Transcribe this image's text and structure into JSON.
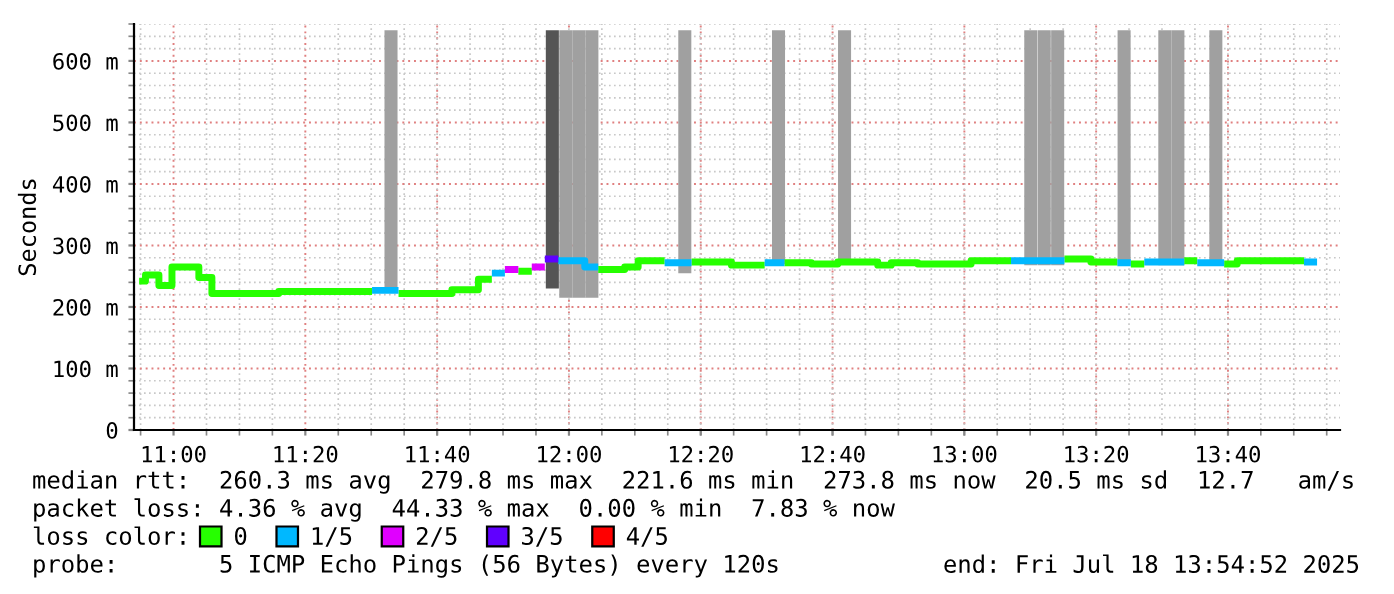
{
  "chart_data": {
    "type": "line",
    "ylabel": "Seconds",
    "series": [
      {
        "name": "0",
        "color": "#26ff00",
        "x": [
          10.913,
          10.929,
          10.929,
          10.963,
          10.963,
          10.996,
          10.996,
          11.064,
          11.064,
          11.097,
          11.097,
          11.266,
          11.266,
          11.502,
          null,
          11.569,
          11.704,
          11.704,
          11.771,
          11.771,
          11.805,
          null,
          11.872,
          11.906,
          null,
          12.074,
          12.141,
          12.141,
          12.175,
          12.175,
          12.242,
          null,
          12.31,
          12.411,
          12.411,
          12.495,
          null,
          12.545,
          12.613,
          12.613,
          12.68,
          12.68,
          12.781,
          12.781,
          12.815,
          12.815,
          12.882,
          12.882,
          12.916,
          12.916,
          13.017,
          13.017,
          13.118,
          null,
          13.253,
          13.32,
          13.32,
          13.387,
          null,
          13.421,
          13.455,
          null,
          13.556,
          13.589,
          null,
          13.657,
          13.69,
          13.69,
          13.859
        ],
        "values": [
          242,
          242,
          252,
          252,
          235,
          235,
          265,
          265,
          248,
          248,
          222,
          222,
          225,
          225,
          null,
          222,
          222,
          228,
          228,
          245,
          245,
          null,
          258,
          258,
          null,
          261,
          261,
          265,
          265,
          275,
          275,
          null,
          273,
          273,
          268,
          268,
          null,
          272,
          272,
          270,
          270,
          273,
          273,
          268,
          268,
          272,
          272,
          270,
          270,
          270,
          270,
          275,
          275,
          null,
          278,
          278,
          273,
          273,
          null,
          270,
          270,
          null,
          275,
          275,
          null,
          270,
          270,
          275,
          275
        ]
      },
      {
        "name": "1/5",
        "color": "#00b8ff",
        "x": [
          11.502,
          11.569,
          null,
          11.805,
          11.838,
          null,
          11.973,
          12.04,
          12.04,
          12.074,
          null,
          12.242,
          12.31,
          null,
          12.495,
          12.545,
          null,
          13.118,
          13.253,
          null,
          13.387,
          13.421,
          null,
          13.455,
          13.556,
          null,
          13.589,
          13.657,
          null,
          13.859,
          13.892
        ],
        "values": [
          227,
          227,
          null,
          255,
          255,
          null,
          275,
          275,
          265,
          265,
          null,
          272,
          272,
          null,
          272,
          272,
          null,
          275,
          275,
          null,
          272,
          272,
          null,
          273,
          273,
          null,
          272,
          272,
          null,
          273,
          273
        ]
      },
      {
        "name": "2/5",
        "color": "#e000ff",
        "x": [
          11.838,
          11.872,
          null,
          11.906,
          11.939
        ],
        "values": [
          261,
          261,
          null,
          265,
          265
        ]
      },
      {
        "name": "3/5",
        "color": "#6000ff",
        "x": [
          11.939,
          11.973
        ],
        "values": [
          278,
          278
        ]
      },
      {
        "name": "4/5",
        "color": "#ff0000"
      },
      {
        "type": "bar",
        "x": [
          11.55,
          11.958,
          11.992,
          12.025,
          12.058,
          12.293,
          12.53,
          12.697,
          13.168,
          13.202,
          13.236,
          13.404,
          13.507,
          13.54,
          13.636
        ],
        "base": [
          225,
          230,
          215,
          215,
          215,
          255,
          270,
          270,
          268,
          268,
          268,
          268,
          268,
          268,
          268
        ],
        "values": [
          425,
          420,
          435,
          435,
          435,
          395,
          380,
          380,
          382,
          382,
          382,
          382,
          382,
          382,
          382
        ],
        "colors": [
          "#a0a0a0",
          "#555555",
          "#a0a0a0",
          "#a0a0a0",
          "#a0a0a0",
          "#a0a0a0",
          "#a0a0a0",
          "#a0a0a0",
          "#a0a0a0",
          "#a0a0a0",
          "#a0a0a0",
          "#a0a0a0",
          "#a0a0a0",
          "#a0a0a0",
          "#a0a0a0"
        ]
      }
    ],
    "xlim": [
      10.9,
      13.95
    ],
    "xticks": [
      {
        "value": 11,
        "label": "11:00"
      },
      {
        "value": 11.3333,
        "label": "11:20"
      },
      {
        "value": 11.6667,
        "label": "11:40"
      },
      {
        "value": 12,
        "label": "12:00"
      },
      {
        "value": 12.3333,
        "label": "12:20"
      },
      {
        "value": 12.6667,
        "label": "12:40"
      },
      {
        "value": 13,
        "label": "13:00"
      },
      {
        "value": 13.3333,
        "label": "13:20"
      },
      {
        "value": 13.6667,
        "label": "13:40"
      }
    ],
    "ylim": [
      0,
      660
    ],
    "yticks": [
      0,
      {
        "value": 100,
        "label": "100 m"
      },
      {
        "value": 200,
        "label": "200 m"
      },
      {
        "value": 300,
        "label": "300 m"
      },
      {
        "value": 400,
        "label": "400 m"
      },
      {
        "value": 500,
        "label": "500 m"
      },
      {
        "value": 600,
        "label": "600 m"
      }
    ],
    "grid": true,
    "legend": "bottom",
    "legend_title": "loss color:",
    "annotations": [
      "median rtt:  260.3 ms avg  279.8 ms max  221.6 ms min  273.8 ms now  20.5 ms sd  12.7   am/s",
      "packet loss: 4.36 % avg  44.33 % max  0.00 % min  7.83 % now",
      "probe:       5 ICMP Echo Pings (56 Bytes) every 120s",
      "end: Fri Jul 18 13:54:52 2025"
    ]
  }
}
